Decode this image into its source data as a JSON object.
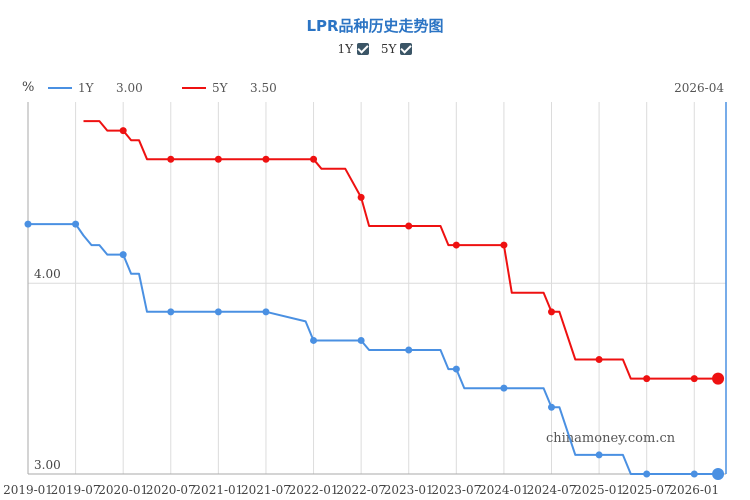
{
  "title": "LPR品种历史走势图",
  "toggles": [
    {
      "label": "1Y",
      "checked": true
    },
    {
      "label": "5Y",
      "checked": true
    }
  ],
  "unit_label": "%",
  "legend": [
    {
      "name": "1Y",
      "value": "3.00",
      "color": "#4a90e2"
    },
    {
      "name": "5Y",
      "value": "3.50",
      "color": "#ee1111"
    }
  ],
  "cursor_label": "2026-04",
  "watermark": "chinamoney.com.cn",
  "chart_data": {
    "type": "line",
    "title": "LPR品种历史走势图",
    "ylabel": "%",
    "ylim": [
      3.0,
      4.95
    ],
    "y_ticks": [
      "4.00",
      "3.00"
    ],
    "y_tick_values": [
      4.0,
      3.0
    ],
    "x_ticks": [
      "2019-01",
      "2019-07",
      "2020-01",
      "2020-07",
      "2021-01",
      "2021-07",
      "2022-01",
      "2022-07",
      "2023-01",
      "2023-07",
      "2024-01",
      "2024-07",
      "2025-01",
      "2025-07",
      "2026-01"
    ],
    "x_range": [
      "2019-01",
      "2026-05"
    ],
    "grid": true,
    "legend_position": "top-left",
    "series": [
      {
        "name": "1Y",
        "color": "#4a90e2",
        "x": [
          "2019-01",
          "2019-07",
          "2019-08",
          "2019-09",
          "2019-10",
          "2019-11",
          "2019-12",
          "2020-01",
          "2020-02",
          "2020-03",
          "2020-04",
          "2020-07",
          "2021-01",
          "2021-07",
          "2021-12",
          "2022-01",
          "2022-02",
          "2022-07",
          "2022-08",
          "2023-01",
          "2023-05",
          "2023-06",
          "2023-07",
          "2023-08",
          "2024-01",
          "2024-06",
          "2024-07",
          "2024-08",
          "2024-10",
          "2025-01",
          "2025-04",
          "2025-05",
          "2025-07",
          "2026-01",
          "2026-04"
        ],
        "values": [
          4.31,
          4.31,
          4.25,
          4.2,
          4.2,
          4.15,
          4.15,
          4.15,
          4.05,
          4.05,
          3.85,
          3.85,
          3.85,
          3.85,
          3.8,
          3.7,
          3.7,
          3.7,
          3.65,
          3.65,
          3.65,
          3.55,
          3.55,
          3.45,
          3.45,
          3.45,
          3.35,
          3.35,
          3.1,
          3.1,
          3.1,
          3.0,
          3.0,
          3.0,
          3.0
        ]
      },
      {
        "name": "5Y",
        "color": "#ee1111",
        "x": [
          "2019-08",
          "2019-09",
          "2019-10",
          "2019-11",
          "2019-12",
          "2020-01",
          "2020-02",
          "2020-03",
          "2020-04",
          "2020-07",
          "2021-01",
          "2021-07",
          "2022-01",
          "2022-02",
          "2022-05",
          "2022-07",
          "2022-08",
          "2023-01",
          "2023-05",
          "2023-06",
          "2023-07",
          "2024-01",
          "2024-02",
          "2024-06",
          "2024-07",
          "2024-08",
          "2024-10",
          "2025-01",
          "2025-04",
          "2025-05",
          "2025-07",
          "2026-01",
          "2026-04"
        ],
        "values": [
          4.85,
          4.85,
          4.85,
          4.8,
          4.8,
          4.8,
          4.75,
          4.75,
          4.65,
          4.65,
          4.65,
          4.65,
          4.65,
          4.6,
          4.6,
          4.45,
          4.3,
          4.3,
          4.3,
          4.2,
          4.2,
          4.2,
          3.95,
          3.95,
          3.85,
          3.85,
          3.6,
          3.6,
          3.6,
          3.5,
          3.5,
          3.5,
          3.5
        ]
      }
    ]
  }
}
